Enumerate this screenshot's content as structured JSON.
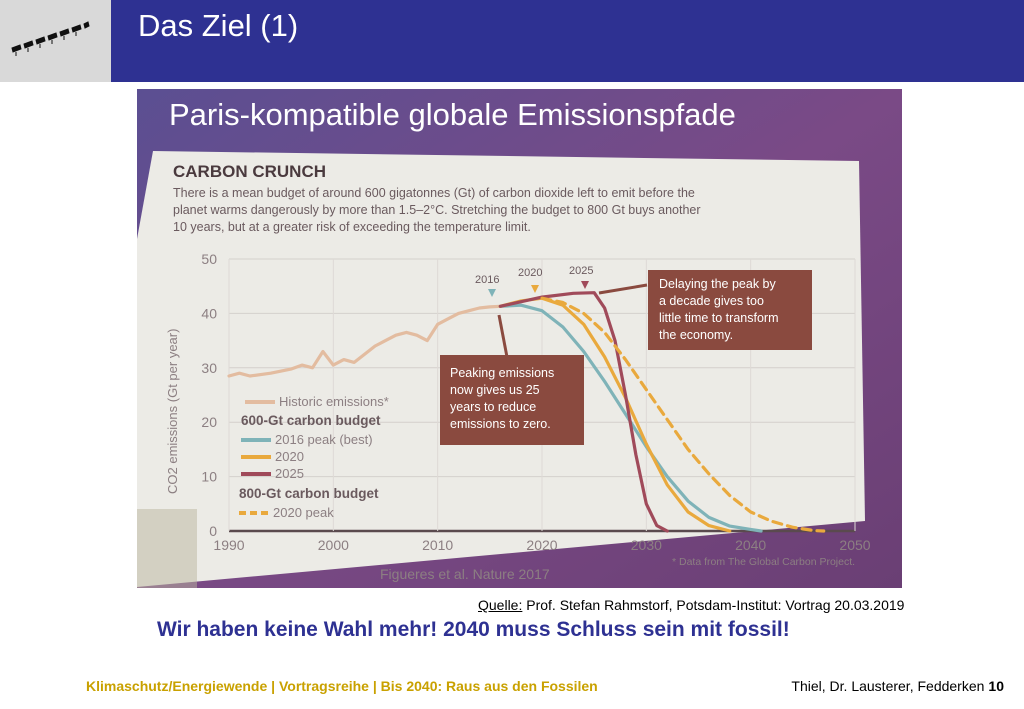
{
  "header": {
    "title": "Das Ziel (1)",
    "color": "#2e3192"
  },
  "photo": {
    "title": "Paris-kompatible globale Emissionspfade",
    "section_title": "CARBON CRUNCH",
    "intro_lines": [
      "There is a mean budget of around 600 gigatonnes (Gt) of carbon dioxide left to emit before the",
      "planet warms dangerously by more than 1.5–2°C. Stretching the budget to 800 Gt buys another",
      "10 years, but at a greater risk of exceeding the temperature limit."
    ],
    "ylabel": "CO2 emissions (Gt per year)",
    "legend": {
      "historic": "Historic emissions*",
      "budget_600": "600-Gt carbon budget",
      "peak_2016": "2016 peak (best)",
      "peak_2020": "2020",
      "peak_2025": "2025",
      "budget_800": "800-Gt carbon budget",
      "peak_2020_800": "2020 peak"
    },
    "marker_labels": [
      "2016",
      "2020",
      "2025"
    ],
    "callout_delay": [
      "Delaying the peak by",
      "a decade gives too",
      "little time to transform",
      "the economy."
    ],
    "callout_peak": [
      "Peaking emissions",
      "now gives us 25",
      "years to reduce",
      "emissions to zero."
    ],
    "citation": "Figueres et al. Nature 2017",
    "footnote": "* Data from The Global Carbon Project.",
    "colors": {
      "historic": "#e3bca0",
      "peak_2016": "#7fb3b8",
      "peak_2020": "#e9a93d",
      "peak_2025": "#a04a5a",
      "callout": "#8a4a3f"
    }
  },
  "chart_data": {
    "type": "line",
    "xlabel": "",
    "ylabel": "CO2 emissions (Gt per year)",
    "x_ticks": [
      1990,
      2000,
      2010,
      2020,
      2030,
      2040,
      2050
    ],
    "y_ticks": [
      0,
      10,
      20,
      30,
      40,
      50
    ],
    "xlim": [
      1990,
      2050
    ],
    "ylim": [
      0,
      50
    ],
    "series": [
      {
        "name": "Historic emissions*",
        "color": "#e3bca0",
        "dashed": false,
        "points": [
          [
            1990,
            28.5
          ],
          [
            1991,
            29
          ],
          [
            1992,
            28.5
          ],
          [
            1994,
            29
          ],
          [
            1996,
            29.8
          ],
          [
            1997,
            30.5
          ],
          [
            1998,
            30
          ],
          [
            1999,
            33
          ],
          [
            2000,
            30.5
          ],
          [
            2001,
            31.5
          ],
          [
            2002,
            31
          ],
          [
            2003,
            32.5
          ],
          [
            2004,
            34
          ],
          [
            2005,
            35
          ],
          [
            2006,
            36
          ],
          [
            2007,
            36.5
          ],
          [
            2008,
            36
          ],
          [
            2009,
            35
          ],
          [
            2010,
            38
          ],
          [
            2011,
            39
          ],
          [
            2012,
            40
          ],
          [
            2013,
            40.5
          ],
          [
            2014,
            41
          ],
          [
            2015,
            41.2
          ],
          [
            2016,
            41.3
          ]
        ]
      },
      {
        "name": "2016 peak (best)",
        "color": "#7fb3b8",
        "dashed": false,
        "points": [
          [
            2016,
            41.3
          ],
          [
            2018,
            41.5
          ],
          [
            2020,
            40.5
          ],
          [
            2022,
            37.5
          ],
          [
            2024,
            33
          ],
          [
            2026,
            27.5
          ],
          [
            2028,
            21.5
          ],
          [
            2030,
            15.5
          ],
          [
            2032,
            10
          ],
          [
            2034,
            5.5
          ],
          [
            2036,
            2.5
          ],
          [
            2038,
            0.9
          ],
          [
            2040,
            0.3
          ],
          [
            2041,
            0
          ]
        ]
      },
      {
        "name": "2020",
        "color": "#e9a93d",
        "dashed": false,
        "points": [
          [
            2016,
            41.3
          ],
          [
            2018,
            42.3
          ],
          [
            2020,
            42.8
          ],
          [
            2022,
            41.5
          ],
          [
            2024,
            38
          ],
          [
            2026,
            32
          ],
          [
            2028,
            24.5
          ],
          [
            2030,
            16
          ],
          [
            2032,
            8.5
          ],
          [
            2034,
            3.5
          ],
          [
            2036,
            1
          ],
          [
            2038,
            0
          ]
        ]
      },
      {
        "name": "2025",
        "color": "#a04a5a",
        "dashed": false,
        "points": [
          [
            2016,
            41.3
          ],
          [
            2020,
            43
          ],
          [
            2023,
            43.7
          ],
          [
            2025,
            43.8
          ],
          [
            2026,
            41
          ],
          [
            2027,
            35
          ],
          [
            2028,
            25
          ],
          [
            2029,
            14
          ],
          [
            2030,
            5
          ],
          [
            2031,
            1
          ],
          [
            2032,
            0
          ]
        ]
      },
      {
        "name": "2020 peak",
        "color": "#e9a93d",
        "dashed": true,
        "points": [
          [
            2020,
            42.8
          ],
          [
            2022,
            42
          ],
          [
            2024,
            40
          ],
          [
            2026,
            36.5
          ],
          [
            2028,
            31.5
          ],
          [
            2030,
            26
          ],
          [
            2032,
            20.5
          ],
          [
            2034,
            15
          ],
          [
            2036,
            10.5
          ],
          [
            2038,
            6.5
          ],
          [
            2040,
            3.5
          ],
          [
            2042,
            1.8
          ],
          [
            2044,
            0.7
          ],
          [
            2046,
            0.1
          ],
          [
            2047,
            0
          ]
        ]
      }
    ]
  },
  "source": {
    "label": "Quelle:",
    "text": " Prof. Stefan Rahmstorf, Potsdam-Institut: Vortrag 20.03.2019"
  },
  "headline": "Wir haben keine Wahl mehr! 2040 muss Schluss sein mit fossil!",
  "footer": {
    "left": "Klimaschutz/Energiewende | Vortragsreihe | Bis 2040: Raus aus den Fossilen",
    "authors": "Thiel, Dr. Lausterer, Fedderken",
    "page": "10",
    "left_color": "#c9a100"
  }
}
